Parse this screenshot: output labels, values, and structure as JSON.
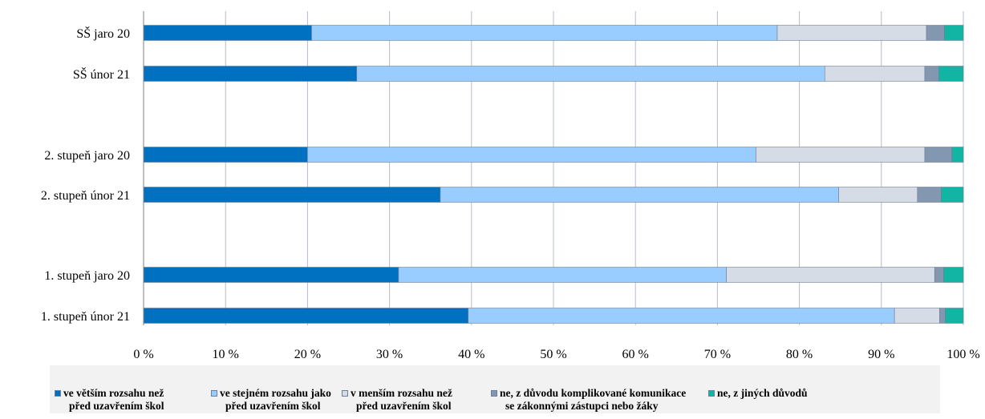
{
  "chart_data": {
    "type": "bar",
    "orientation": "horizontal",
    "stacked": true,
    "categories": [
      "SŠ jaro 20",
      "SŠ únor 21",
      "2. stupeň jaro 20",
      "2. stupeň únor 21",
      "1. stupeň jaro 20",
      "1. stupeň únor 21"
    ],
    "series": [
      {
        "name": "ve větším rozsahu než před uzavřením škol",
        "name_line1": "ve větším rozsahu než",
        "name_line2": "před uzavřením škol",
        "color": "#0070c0",
        "values": [
          20.5,
          26.0,
          20.0,
          36.2,
          31.1,
          39.6
        ]
      },
      {
        "name": "ve stejném rozsahu jako před uzavřením škol",
        "name_line1": "ve stejném rozsahu jako",
        "name_line2": "před uzavřením škol",
        "color": "#99ccff",
        "values": [
          56.8,
          57.1,
          54.7,
          48.6,
          40.0,
          52.0
        ]
      },
      {
        "name": "v menším rozsahu než před uzavřením škol",
        "name_line1": "v menším rozsahu než",
        "name_line2": "před uzavřením škol",
        "color": "#d6dce5",
        "values": [
          18.2,
          12.2,
          20.6,
          9.6,
          25.4,
          5.5
        ]
      },
      {
        "name": "ne, z důvodu komplikované komunikace se zákonnými zástupci nebo žáky",
        "name_line1": "ne, z důvodu komplikované komunikace",
        "name_line2": "se zákonnými zástupci nebo žáky",
        "color": "#8497b0",
        "values": [
          2.2,
          1.7,
          3.3,
          2.9,
          1.1,
          0.7
        ]
      },
      {
        "name": "ne, z jiných důvodů",
        "name_line1": "ne, z jiných důvodů",
        "name_line2": "",
        "color": "#12b5a4",
        "values": [
          2.3,
          3.0,
          1.4,
          2.7,
          2.4,
          2.2
        ]
      }
    ],
    "xlim": [
      0,
      100
    ],
    "xticks": [
      "0 %",
      "10 %",
      "20 %",
      "30 %",
      "40 %",
      "50 %",
      "60 %",
      "70 %",
      "80 %",
      "90 %",
      "100 %"
    ],
    "grid": "vertical",
    "legend_position": "bottom",
    "title": "",
    "xlabel": "",
    "ylabel": ""
  }
}
